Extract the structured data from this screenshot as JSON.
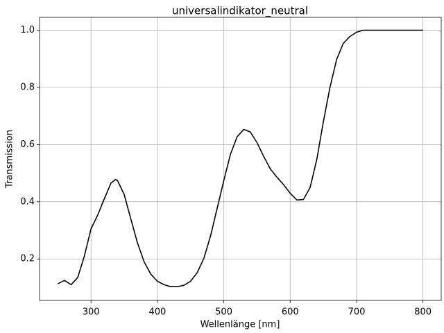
{
  "chart_data": {
    "type": "line",
    "title": "universalindikator_neutral",
    "x_label": "Wellenlänge [nm]",
    "y_label": "Transmission",
    "x": [
      250,
      260,
      270,
      280,
      290,
      300,
      310,
      320,
      330,
      337,
      340,
      350,
      360,
      370,
      380,
      390,
      400,
      410,
      420,
      430,
      440,
      450,
      460,
      470,
      480,
      490,
      500,
      510,
      520,
      530,
      540,
      550,
      560,
      570,
      580,
      590,
      600,
      610,
      620,
      630,
      640,
      650,
      660,
      670,
      680,
      690,
      700,
      710,
      720,
      730,
      740,
      750,
      760,
      770,
      780,
      790,
      800
    ],
    "series": [
      {
        "color": "#000000",
        "values": [
          0.113,
          0.125,
          0.11,
          0.135,
          0.21,
          0.305,
          0.353,
          0.41,
          0.465,
          0.478,
          0.474,
          0.425,
          0.34,
          0.256,
          0.19,
          0.147,
          0.122,
          0.11,
          0.103,
          0.103,
          0.108,
          0.122,
          0.152,
          0.202,
          0.28,
          0.377,
          0.474,
          0.566,
          0.627,
          0.653,
          0.644,
          0.607,
          0.559,
          0.515,
          0.486,
          0.46,
          0.43,
          0.406,
          0.408,
          0.45,
          0.547,
          0.68,
          0.801,
          0.898,
          0.954,
          0.978,
          0.993,
          1.0,
          1.0,
          1.0,
          1.0,
          1.0,
          1.0,
          1.0,
          1.0,
          1.0,
          1.0
        ]
      }
    ],
    "xlim": [
      222.5,
      827.5
    ],
    "ylim": [
      0.055,
      1.045
    ],
    "xticks": [
      300,
      400,
      500,
      600,
      700,
      800
    ],
    "yticks": [
      0.2,
      0.4,
      0.6,
      0.8,
      {
        "value": 1,
        "label": "1.0"
      }
    ],
    "grid": true
  }
}
